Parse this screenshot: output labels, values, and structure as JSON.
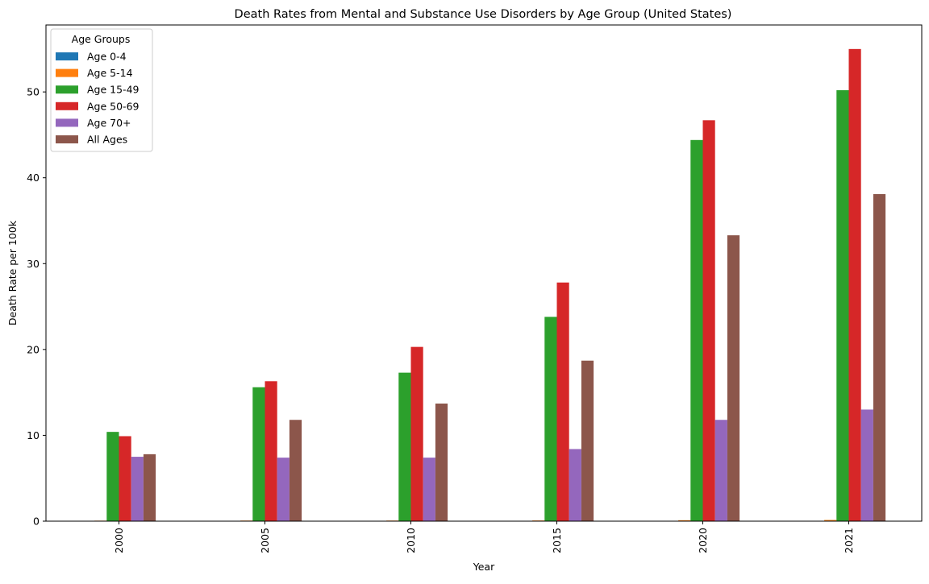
{
  "chart_data": {
    "type": "bar",
    "title": "Death Rates from Mental and Substance Use Disorders by Age Group (United States)",
    "xlabel": "Year",
    "ylabel": "Death Rate per 100k",
    "categories": [
      "2000",
      "2005",
      "2010",
      "2015",
      "2020",
      "2021"
    ],
    "ylim": [
      0,
      57.8
    ],
    "yticks": [
      0,
      10,
      20,
      30,
      40,
      50
    ],
    "grid": false,
    "legend": {
      "title": "Age Groups",
      "placement": "top-left"
    },
    "series": [
      {
        "name": "Age 0-4",
        "color": "#1f77b4",
        "values": [
          0.01,
          0.01,
          0.01,
          0.01,
          0.02,
          0.02
        ]
      },
      {
        "name": "Age 5-14",
        "color": "#ff7f0e",
        "values": [
          0.06,
          0.07,
          0.07,
          0.08,
          0.11,
          0.14
        ]
      },
      {
        "name": "Age 15-49",
        "color": "#2ca02c",
        "values": [
          10.4,
          15.6,
          17.3,
          23.8,
          44.4,
          50.2
        ]
      },
      {
        "name": "Age 50-69",
        "color": "#d62728",
        "values": [
          9.9,
          16.3,
          20.3,
          27.8,
          46.7,
          55.0
        ]
      },
      {
        "name": "Age 70+",
        "color": "#9467bd",
        "values": [
          7.5,
          7.4,
          7.4,
          8.4,
          11.8,
          13.0
        ]
      },
      {
        "name": "All Ages",
        "color": "#8c564b",
        "values": [
          7.8,
          11.8,
          13.7,
          18.7,
          33.3,
          38.1
        ]
      }
    ]
  }
}
